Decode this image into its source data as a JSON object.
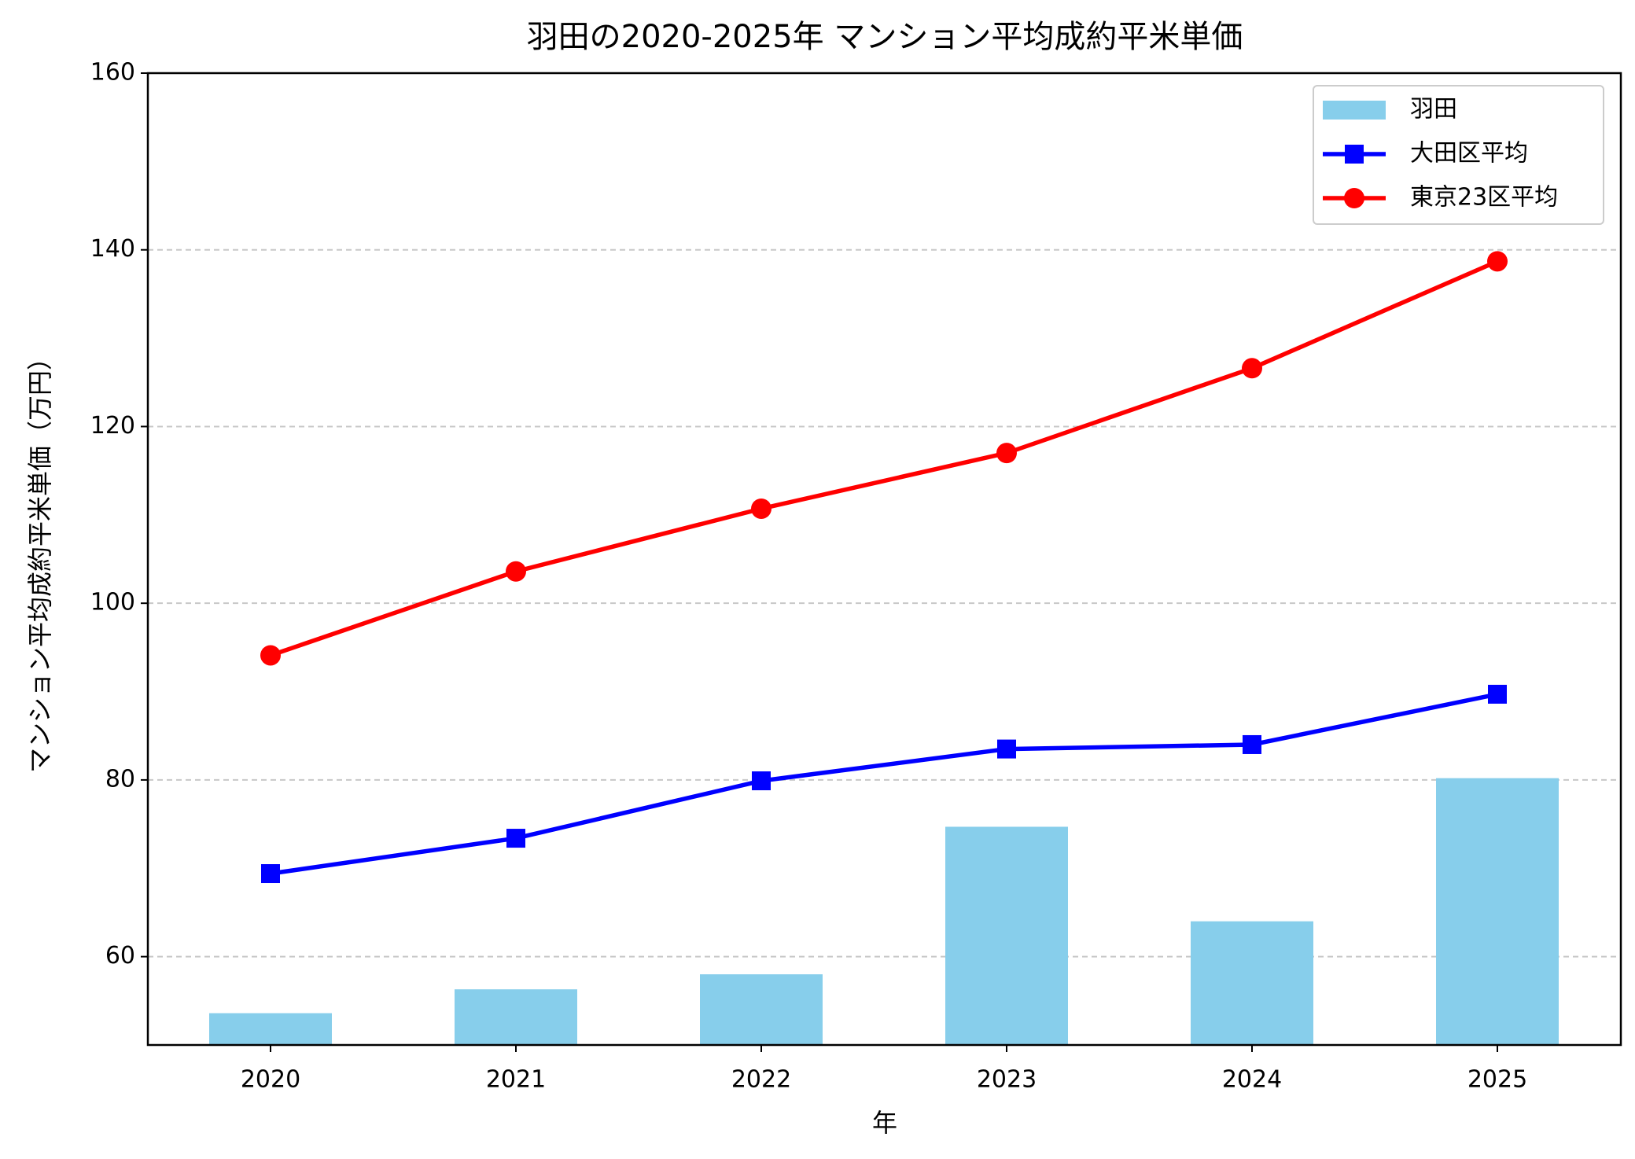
{
  "chart_data": {
    "type": "combo",
    "title": "羽田の2020-2025年 マンション平均成約平米単価",
    "x_label": "年",
    "y_label": "マンション平均成約平米単価（万円）",
    "categories": [
      "2020",
      "2021",
      "2022",
      "2023",
      "2024",
      "2025"
    ],
    "series": [
      {
        "name": "羽田",
        "type": "bar",
        "color": "#87ceeb",
        "values": [
          53.6,
          56.3,
          58.0,
          74.7,
          64.0,
          80.2
        ]
      },
      {
        "name": "大田区平均",
        "type": "line",
        "marker": "square",
        "color": "#0000ff",
        "values": [
          69.4,
          73.4,
          79.9,
          83.5,
          84.0,
          89.7
        ]
      },
      {
        "name": "東京23区平均",
        "type": "line",
        "marker": "circle",
        "color": "#ff0000",
        "values": [
          94.1,
          103.6,
          110.7,
          117.0,
          126.6,
          138.7
        ]
      }
    ],
    "ylim": [
      50,
      160
    ],
    "yticks": [
      60,
      80,
      100,
      120,
      140,
      160
    ],
    "grid": true,
    "legend": "upper right"
  }
}
